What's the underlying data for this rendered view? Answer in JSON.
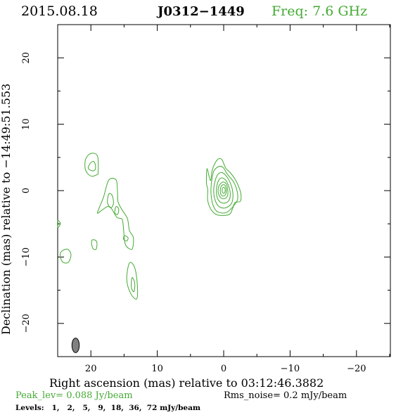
{
  "header": {
    "date": "2015.08.18",
    "source": "J0312−1449",
    "freq": "Freq: 7.6 GHz"
  },
  "footer": {
    "peak": "Peak_lev=  0.088 Jy/beam",
    "rms": "Rms_noise=  0.2 mJy/beam",
    "levels": "Levels:   1,   2,   5,   9,  18,  36,  72 mJy/beam"
  },
  "colors": {
    "contour": "#44aa33",
    "axis": "#000000",
    "beam_fill": "#808080",
    "freq_text": "#44aa33",
    "peak_text": "#44aa33"
  },
  "chart_data": {
    "type": "contour",
    "xlabel": "Right ascension (mas) relative to 03:12:46.3882",
    "ylabel": "Declination (mas) relative to −14:49:51.553",
    "xlim": [
      25,
      -25
    ],
    "ylim": [
      -25,
      25
    ],
    "x_ticks": [
      20,
      10,
      0,
      -10,
      -20
    ],
    "x_tick_labels": [
      "20",
      "10",
      "0",
      "−10",
      "−20"
    ],
    "y_ticks": [
      20,
      10,
      0,
      -10,
      -20
    ],
    "y_tick_labels": [
      "20",
      "10",
      "0",
      "−10",
      "−20"
    ],
    "levels_mJy": [
      1,
      2,
      5,
      9,
      18,
      36,
      72
    ],
    "peak_Jy_per_beam": 0.088,
    "rms_mJy_per_beam": 0.2,
    "beam": {
      "x": 22.3,
      "y": -23.3,
      "major": 2.2,
      "minor": 1.1,
      "pa_deg": 0
    },
    "contours": [
      {
        "name": "core-lvl1",
        "points": [
          [
            2.0,
            1.5
          ],
          [
            1.7,
            3.2
          ],
          [
            1.0,
            4.6
          ],
          [
            0.3,
            4.7
          ],
          [
            -0.3,
            3.4
          ],
          [
            -1.0,
            2.7
          ],
          [
            -1.8,
            1.6
          ],
          [
            -2.3,
            0.5
          ],
          [
            -2.6,
            -0.5
          ],
          [
            -2.5,
            -1.6
          ],
          [
            -1.7,
            -1.8
          ],
          [
            -1.3,
            -2.8
          ],
          [
            -0.8,
            -3.6
          ],
          [
            0.8,
            -3.7
          ],
          [
            1.8,
            -3.0
          ],
          [
            2.4,
            -1.5
          ],
          [
            2.4,
            0.2
          ],
          [
            2.6,
            1.2
          ],
          [
            2.5,
            3.3
          ]
        ]
      },
      {
        "name": "core-lvl2",
        "points": [
          [
            1.8,
            1.5
          ],
          [
            1.5,
            2.9
          ],
          [
            0.8,
            3.6
          ],
          [
            0.1,
            3.5
          ],
          [
            -0.6,
            2.4
          ],
          [
            -1.5,
            1.3
          ],
          [
            -2.0,
            0.0
          ],
          [
            -2.1,
            -1.3
          ],
          [
            -1.5,
            -2.3
          ],
          [
            -0.4,
            -3.3
          ],
          [
            0.9,
            -3.2
          ],
          [
            1.6,
            -2.2
          ],
          [
            1.9,
            -0.6
          ],
          [
            1.9,
            0.6
          ]
        ]
      },
      {
        "name": "core-lvl3",
        "points": [
          [
            1.3,
            1.4
          ],
          [
            0.9,
            2.4
          ],
          [
            0.2,
            2.7
          ],
          [
            -0.6,
            1.9
          ],
          [
            -1.2,
            0.6
          ],
          [
            -1.4,
            -0.7
          ],
          [
            -1.2,
            -1.9
          ],
          [
            -0.3,
            -2.6
          ],
          [
            0.7,
            -2.4
          ],
          [
            1.3,
            -1.4
          ],
          [
            1.5,
            0.0
          ]
        ]
      },
      {
        "name": "core-lvl4",
        "points": [
          [
            0.9,
            1.2
          ],
          [
            0.4,
            1.9
          ],
          [
            -0.3,
            1.6
          ],
          [
            -0.8,
            0.5
          ],
          [
            -1.0,
            -0.6
          ],
          [
            -0.7,
            -1.6
          ],
          [
            0.1,
            -1.9
          ],
          [
            0.8,
            -1.4
          ],
          [
            1.1,
            -0.3
          ]
        ]
      },
      {
        "name": "core-lvl5",
        "points": [
          [
            0.6,
            0.9
          ],
          [
            0.1,
            1.3
          ],
          [
            -0.4,
            1.0
          ],
          [
            -0.6,
            0.2
          ],
          [
            -0.6,
            -0.7
          ],
          [
            -0.2,
            -1.2
          ],
          [
            0.4,
            -1.1
          ],
          [
            0.8,
            -0.4
          ],
          [
            0.8,
            0.4
          ]
        ]
      },
      {
        "name": "core-lvl6",
        "points": [
          [
            0.4,
            0.6
          ],
          [
            0.0,
            0.9
          ],
          [
            -0.3,
            0.6
          ],
          [
            -0.4,
            -0.1
          ],
          [
            -0.2,
            -0.7
          ],
          [
            0.2,
            -0.8
          ],
          [
            0.5,
            -0.3
          ]
        ]
      },
      {
        "name": "core-lvl7",
        "points": [
          [
            0.2,
            0.3
          ],
          [
            0.0,
            0.5
          ],
          [
            -0.2,
            0.3
          ],
          [
            -0.2,
            -0.2
          ],
          [
            0.0,
            -0.4
          ],
          [
            0.2,
            -0.2
          ]
        ]
      },
      {
        "name": "knot-ne-outer",
        "points": [
          [
            20.8,
            3.1
          ],
          [
            20.8,
            4.7
          ],
          [
            20.0,
            5.6
          ],
          [
            19.0,
            5.2
          ],
          [
            18.9,
            2.8
          ],
          [
            19.1,
            2.4
          ],
          [
            20.0,
            2.2
          ]
        ]
      },
      {
        "name": "knot-ne-inner",
        "points": [
          [
            20.4,
            3.4
          ],
          [
            20.1,
            4.1
          ],
          [
            19.6,
            4.4
          ],
          [
            19.3,
            3.8
          ],
          [
            19.4,
            3.1
          ],
          [
            19.9,
            3.0
          ]
        ]
      },
      {
        "name": "jet-main",
        "points": [
          [
            17.3,
            1.6
          ],
          [
            18.1,
            -1.0
          ],
          [
            19.0,
            -3.3
          ],
          [
            18.4,
            -3.0
          ],
          [
            17.2,
            -2.4
          ],
          [
            16.1,
            -4.0
          ],
          [
            15.3,
            -4.3
          ],
          [
            15.1,
            -5.6
          ],
          [
            14.8,
            -8.1
          ],
          [
            13.8,
            -8.8
          ],
          [
            13.6,
            -7.1
          ],
          [
            14.2,
            -6.0
          ],
          [
            14.5,
            -4.2
          ],
          [
            15.3,
            -2.9
          ],
          [
            15.9,
            -1.7
          ],
          [
            16.0,
            -0.1
          ],
          [
            16.2,
            1.6
          ]
        ]
      },
      {
        "name": "jet-hole-1",
        "points": [
          [
            17.3,
            -0.5
          ],
          [
            17.5,
            -1.8
          ],
          [
            17.0,
            -2.6
          ],
          [
            16.6,
            -1.9
          ],
          [
            16.8,
            -0.7
          ]
        ]
      },
      {
        "name": "jet-hole-2",
        "points": [
          [
            14.9,
            -6.8
          ],
          [
            15.1,
            -7.3
          ],
          [
            14.6,
            -7.6
          ],
          [
            14.4,
            -7.1
          ]
        ]
      },
      {
        "name": "jet-knot-small",
        "points": [
          [
            16.2,
            -2.4
          ],
          [
            16.4,
            -3.3
          ],
          [
            16.0,
            -3.6
          ],
          [
            15.8,
            -2.8
          ]
        ]
      },
      {
        "name": "knot-s-outer",
        "points": [
          [
            14.2,
            -10.9
          ],
          [
            14.6,
            -13.4
          ],
          [
            14.0,
            -15.5
          ],
          [
            13.1,
            -16.3
          ],
          [
            13.0,
            -14.3
          ],
          [
            13.4,
            -11.6
          ]
        ]
      },
      {
        "name": "knot-s-inner",
        "points": [
          [
            13.8,
            -13.1
          ],
          [
            13.9,
            -14.6
          ],
          [
            13.5,
            -15.2
          ],
          [
            13.4,
            -13.9
          ]
        ]
      },
      {
        "name": "blob-w1",
        "points": [
          [
            24.6,
            -9.4
          ],
          [
            24.3,
            -10.7
          ],
          [
            23.4,
            -10.8
          ],
          [
            23.0,
            -9.6
          ],
          [
            23.6,
            -8.8
          ]
        ]
      },
      {
        "name": "blob-w2",
        "points": [
          [
            19.9,
            -7.6
          ],
          [
            19.7,
            -8.7
          ],
          [
            19.2,
            -8.8
          ],
          [
            19.1,
            -7.8
          ],
          [
            19.5,
            -7.4
          ]
        ]
      },
      {
        "name": "edge-w",
        "points": [
          [
            25.0,
            -4.5
          ],
          [
            24.6,
            -4.9
          ],
          [
            24.8,
            -5.4
          ],
          [
            25.0,
            -5.5
          ]
        ]
      }
    ]
  }
}
